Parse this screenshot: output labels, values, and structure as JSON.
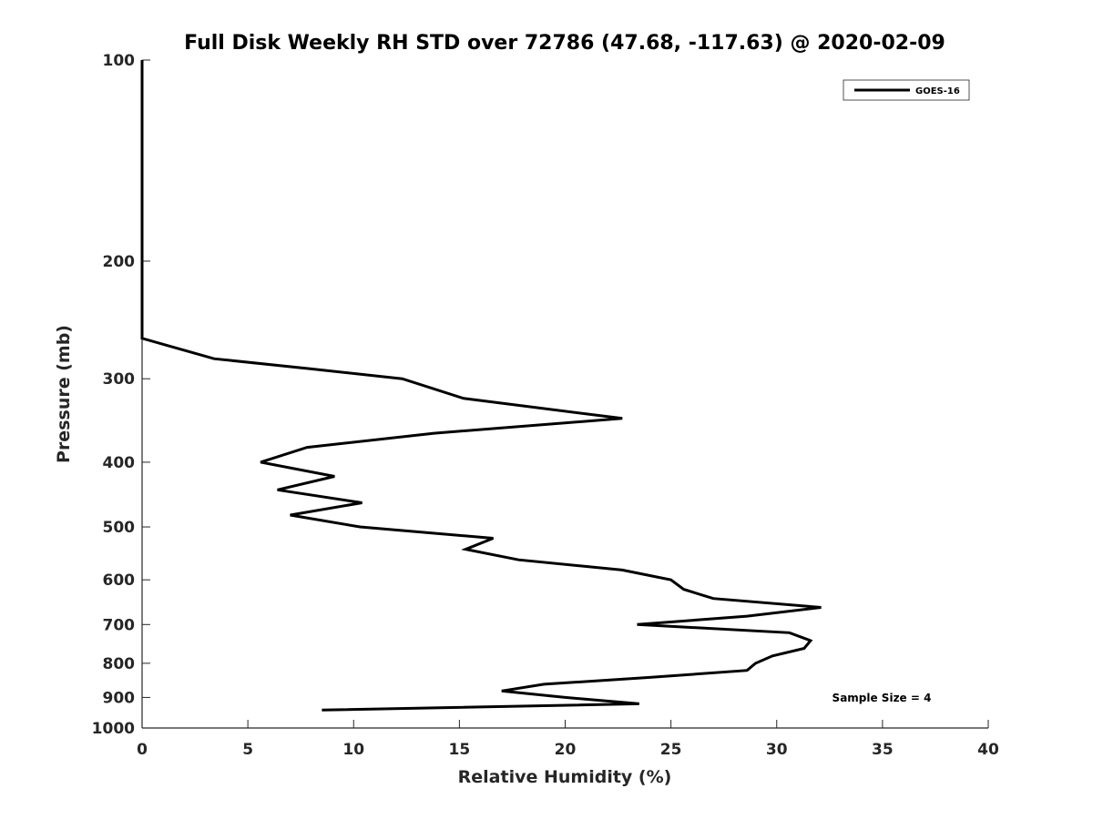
{
  "chart_data": {
    "type": "line",
    "title": "Full Disk Weekly RH STD over 72786 (47.68, -117.63) @ 2020-02-09",
    "xlabel": "Relative Humidity (%)",
    "ylabel": "Pressure (mb)",
    "xlim": [
      0,
      40
    ],
    "ylim": [
      1000,
      100
    ],
    "y_scale": "log",
    "x_ticks": [
      "0",
      "5",
      "10",
      "15",
      "20",
      "25",
      "30",
      "35",
      "40"
    ],
    "y_ticks": [
      "100",
      "200",
      "300",
      "400",
      "500",
      "600",
      "700",
      "800",
      "900",
      "1000"
    ],
    "grid": false,
    "legend_position": "top-right",
    "series": [
      {
        "name": "GOES-16",
        "color": "#000000",
        "points": [
          {
            "p": 100,
            "rh": 0.0
          },
          {
            "p": 150,
            "rh": 0.0
          },
          {
            "p": 200,
            "rh": 0.0
          },
          {
            "p": 250,
            "rh": 0.0
          },
          {
            "p": 261,
            "rh": 0.0
          },
          {
            "p": 280,
            "rh": 3.4
          },
          {
            "p": 290,
            "rh": 8.0
          },
          {
            "p": 300,
            "rh": 12.3
          },
          {
            "p": 321,
            "rh": 15.2
          },
          {
            "p": 344,
            "rh": 22.7
          },
          {
            "p": 362,
            "rh": 13.8
          },
          {
            "p": 380,
            "rh": 7.8
          },
          {
            "p": 400,
            "rh": 5.6
          },
          {
            "p": 420,
            "rh": 9.1
          },
          {
            "p": 440,
            "rh": 6.4
          },
          {
            "p": 460,
            "rh": 10.4
          },
          {
            "p": 480,
            "rh": 7.0
          },
          {
            "p": 500,
            "rh": 10.3
          },
          {
            "p": 520,
            "rh": 16.6
          },
          {
            "p": 540,
            "rh": 15.3
          },
          {
            "p": 560,
            "rh": 17.8
          },
          {
            "p": 580,
            "rh": 22.7
          },
          {
            "p": 600,
            "rh": 25.0
          },
          {
            "p": 620,
            "rh": 25.6
          },
          {
            "p": 640,
            "rh": 27.0
          },
          {
            "p": 660,
            "rh": 32.1
          },
          {
            "p": 680,
            "rh": 28.6
          },
          {
            "p": 700,
            "rh": 23.4
          },
          {
            "p": 720,
            "rh": 30.6
          },
          {
            "p": 740,
            "rh": 31.6
          },
          {
            "p": 760,
            "rh": 31.3
          },
          {
            "p": 780,
            "rh": 29.8
          },
          {
            "p": 800,
            "rh": 29.0
          },
          {
            "p": 820,
            "rh": 28.6
          },
          {
            "p": 840,
            "rh": 24.0
          },
          {
            "p": 860,
            "rh": 19.0
          },
          {
            "p": 880,
            "rh": 17.0
          },
          {
            "p": 900,
            "rh": 20.0
          },
          {
            "p": 920,
            "rh": 23.5
          },
          {
            "p": 940,
            "rh": 8.5
          }
        ]
      }
    ],
    "annotations": [
      {
        "text": "Sample Size = 4",
        "position": "lower-right"
      }
    ]
  }
}
